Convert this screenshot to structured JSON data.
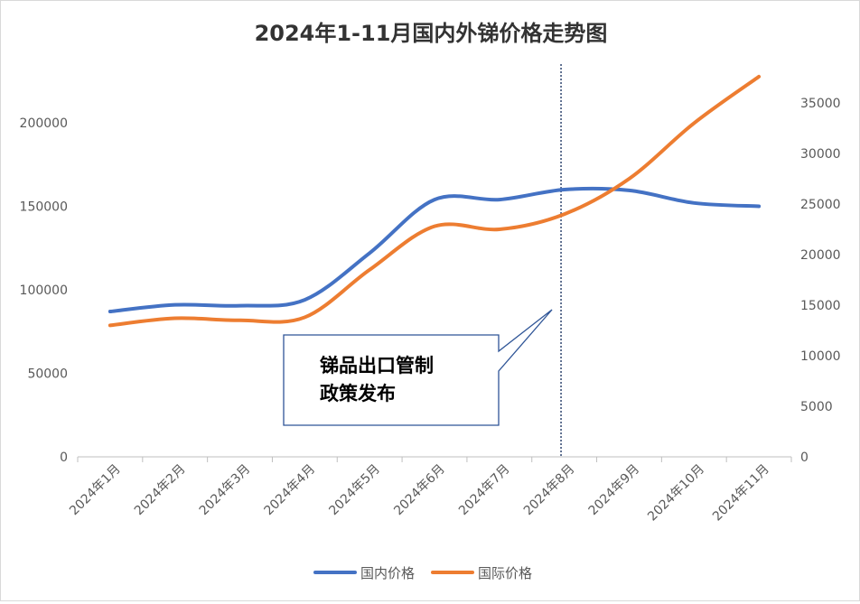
{
  "chart_data": {
    "type": "line",
    "title": "2024年1-11月国内外锑价格走势图",
    "categories": [
      "2024年1月",
      "2024年2月",
      "2024年3月",
      "2024年4月",
      "2024年5月",
      "2024年6月",
      "2024年7月",
      "2024年8月",
      "2024年9月",
      "2024年10月",
      "2024年11月"
    ],
    "series": [
      {
        "name": "国内价格",
        "axis": "left",
        "color": "#4472C4",
        "values": [
          87000,
          91000,
          90500,
          94000,
          122000,
          154000,
          154000,
          160000,
          159500,
          152000,
          150000
        ]
      },
      {
        "name": "国际价格",
        "axis": "right",
        "color": "#ED7D31",
        "values": [
          13000,
          13700,
          13500,
          13800,
          18500,
          22800,
          22500,
          24000,
          27500,
          33000,
          37600
        ]
      }
    ],
    "y_left": {
      "min": 0,
      "max": 200000,
      "ticks": [
        0,
        50000,
        100000,
        150000,
        200000
      ]
    },
    "y_right": {
      "min": 0,
      "max": 35000,
      "ticks": [
        0,
        5000,
        10000,
        15000,
        20000,
        25000,
        30000,
        35000
      ]
    },
    "marker_category": "2024年8月",
    "annotation": {
      "lines": [
        "锑品出口管制",
        "政策发布"
      ]
    },
    "legend": "bottom",
    "grid": false
  }
}
